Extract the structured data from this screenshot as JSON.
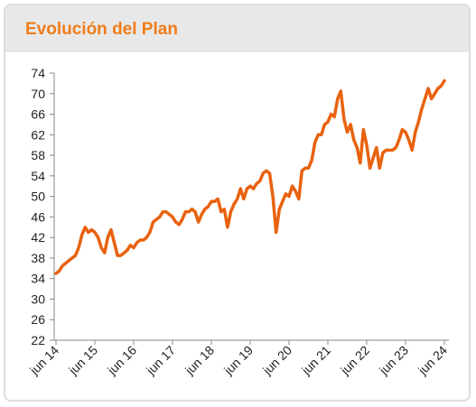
{
  "chart_data": {
    "type": "line",
    "title": "Evolución del Plan",
    "categories": [
      "jun 14",
      null,
      null,
      null,
      null,
      null,
      null,
      null,
      null,
      null,
      null,
      null,
      "jun 15",
      null,
      null,
      null,
      null,
      null,
      null,
      null,
      null,
      null,
      null,
      null,
      "jun 16",
      null,
      null,
      null,
      null,
      null,
      null,
      null,
      null,
      null,
      null,
      null,
      "jun 17",
      null,
      null,
      null,
      null,
      null,
      null,
      null,
      null,
      null,
      null,
      null,
      "jun 18",
      null,
      null,
      null,
      null,
      null,
      null,
      null,
      null,
      null,
      null,
      null,
      "jun 19",
      null,
      null,
      null,
      null,
      null,
      null,
      null,
      null,
      null,
      null,
      null,
      "jun 20",
      null,
      null,
      null,
      null,
      null,
      null,
      null,
      null,
      null,
      null,
      null,
      "jun 21",
      null,
      null,
      null,
      null,
      null,
      null,
      null,
      null,
      null,
      null,
      null,
      "jun 22",
      null,
      null,
      null,
      null,
      null,
      null,
      null,
      null,
      null,
      null,
      null,
      "jun 23",
      null,
      null,
      null,
      null,
      null,
      null,
      null,
      null,
      null,
      null,
      null,
      "jun 24"
    ],
    "values": [
      35,
      35.5,
      36.5,
      37,
      37.5,
      38,
      38.5,
      40,
      42.5,
      44,
      43,
      43.5,
      43,
      42,
      40,
      39,
      42,
      43.5,
      41,
      38.5,
      38.5,
      39,
      39.5,
      40.5,
      40,
      41,
      41.5,
      41.5,
      42,
      43,
      45,
      45.5,
      46,
      47,
      47,
      46.5,
      46,
      45,
      44.5,
      45.5,
      47,
      47,
      47.5,
      47,
      45,
      46.5,
      47.5,
      48,
      49,
      49,
      49.5,
      47,
      47.5,
      44,
      47,
      48.5,
      49.5,
      51.5,
      49.5,
      51.5,
      52,
      51.5,
      52.5,
      53,
      54.5,
      55,
      54.5,
      50,
      43,
      47.5,
      49,
      50.5,
      50,
      52,
      51,
      49.5,
      55,
      55.5,
      55.5,
      57,
      60.5,
      62,
      62,
      64,
      64.5,
      66,
      65.5,
      69,
      70.5,
      65,
      62.5,
      64,
      61,
      59.5,
      56.5,
      63,
      60,
      55.5,
      57.5,
      59.5,
      55.5,
      58.5,
      59,
      59,
      59,
      59.5,
      61,
      63,
      62.5,
      61,
      59,
      62.5,
      64.5,
      67,
      69,
      71,
      69,
      70,
      71,
      71.5,
      72.5
    ],
    "color": "#e8620f",
    "ylim": [
      22,
      74
    ],
    "yticks": [
      22,
      26,
      30,
      34,
      38,
      42,
      46,
      50,
      54,
      58,
      62,
      66,
      70,
      74
    ],
    "grid": false
  }
}
